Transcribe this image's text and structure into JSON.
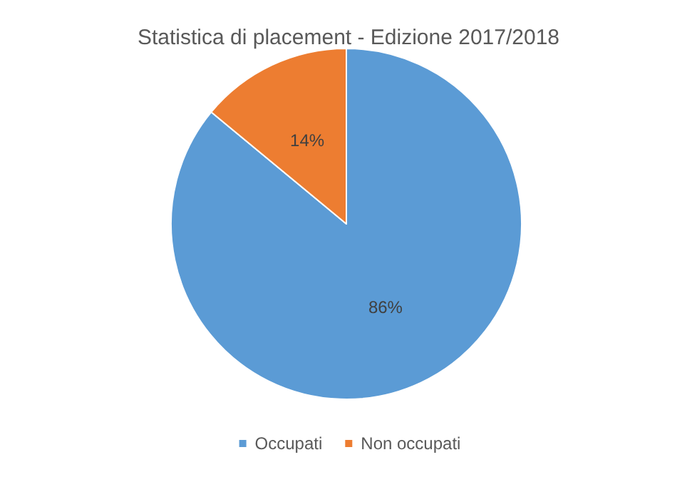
{
  "chart_data": {
    "type": "pie",
    "title": "Statistica di placement - Edizione 2017/2018",
    "categories": [
      "Occupati",
      "Non occupati"
    ],
    "values": [
      86,
      14
    ],
    "colors": [
      "#5b9bd5",
      "#ed7d31"
    ],
    "value_labels": [
      "86%",
      "14%"
    ],
    "legend": "bottom"
  }
}
